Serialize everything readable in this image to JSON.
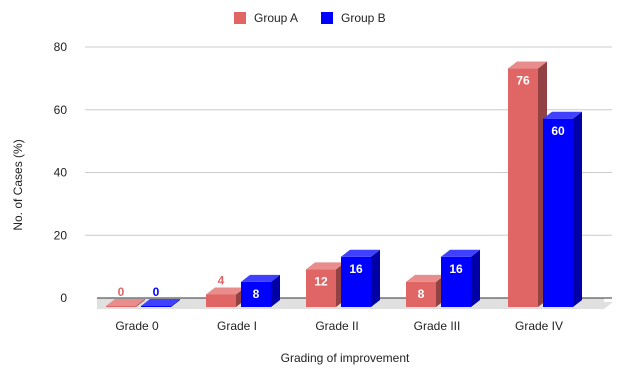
{
  "chart_data": {
    "type": "bar",
    "style": "3d",
    "categories": [
      "Grade 0",
      "Grade I",
      "Grade II",
      "Grade III",
      "Grade IV"
    ],
    "series": [
      {
        "name": "Group A",
        "values": [
          0,
          4,
          12,
          8,
          76
        ],
        "color": "#e06666"
      },
      {
        "name": "Group B",
        "values": [
          0,
          8,
          16,
          16,
          60
        ],
        "color": "#0000ff"
      }
    ],
    "xlabel": "Grading of improvement",
    "ylabel": "No. of Cases (%)",
    "ylim": [
      0,
      80
    ],
    "yticks": [
      0,
      20,
      40,
      60,
      80
    ],
    "grid": true,
    "legend_position": "top-center",
    "colors": {
      "group_a_label": "#e06666",
      "group_b_label": "#0000ff",
      "label_on_bar": "#ffffff",
      "floor": "#e0e0e0",
      "grid": "#cccccc"
    }
  }
}
